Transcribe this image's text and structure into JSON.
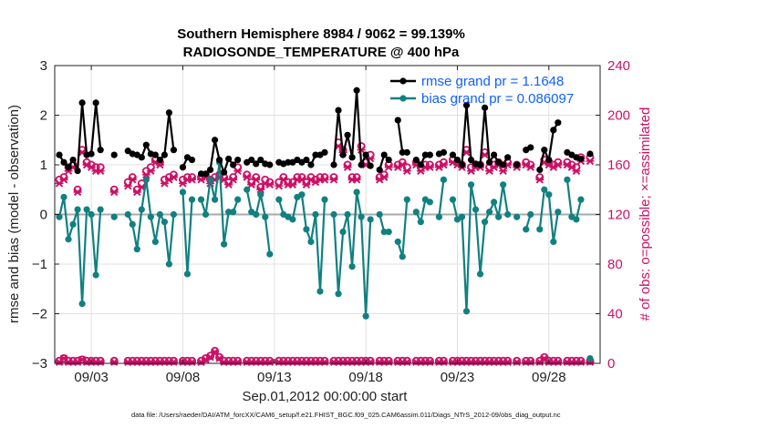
{
  "chart_data": {
    "type": "line",
    "title": "Southern Hemisphere 8984 / 9062 = 99.139%",
    "subtitle": "RADIOSONDE_TEMPERATURE @ 400 hPa",
    "xlabel": "Sep.01,2012 00:00:00 start",
    "ylabel": "rmse and bias (model - observation)",
    "ylabel_right": "# of obs: o=possible; ×=assimilated",
    "footer": "data file: /Users/raeder/DAI/ATM_forcXX/CAM6_setup/f.e21.FHIST_BGC.f09_025.CAM6assim.011/Diags_NTrS_2012-09/obs_diag_output.nc",
    "xlim": [
      1.0,
      30.8
    ],
    "ylim": [
      -3,
      3
    ],
    "ylim_right": [
      0,
      240
    ],
    "x_ticks": [
      3,
      8,
      13,
      18,
      23,
      28
    ],
    "x_tick_labels": [
      "09/03",
      "09/08",
      "09/13",
      "09/18",
      "09/23",
      "09/28"
    ],
    "y_ticks": [
      -3,
      -2,
      -1,
      0,
      1,
      2,
      3
    ],
    "y_tick_labels": [
      "−3",
      "−2",
      "−1",
      "0",
      "1",
      "2",
      "3"
    ],
    "y_right_ticks": [
      0,
      40,
      80,
      120,
      160,
      200,
      240
    ],
    "y_right_tick_labels": [
      "0",
      "40",
      "80",
      "120",
      "160",
      "200",
      "240"
    ],
    "grid": true,
    "legend_position": "top-right",
    "colors": {
      "rmse": "#000000",
      "bias": "#118080",
      "obs": "#cc1166",
      "zero_line": "#aaaaaa",
      "grid": "#e0e0e0"
    },
    "x": [
      1.25,
      1.5,
      1.75,
      2.0,
      2.25,
      2.5,
      2.75,
      3.0,
      3.25,
      3.5,
      3.75,
      4.0,
      4.25,
      4.5,
      4.75,
      5.0,
      5.25,
      5.5,
      5.75,
      6.0,
      6.25,
      6.5,
      6.75,
      7.0,
      7.25,
      7.5,
      7.75,
      8.0,
      8.25,
      8.5,
      8.75,
      9.0,
      9.25,
      9.5,
      9.75,
      10.0,
      10.25,
      10.5,
      10.75,
      11.0,
      11.25,
      11.5,
      11.75,
      12.0,
      12.25,
      12.5,
      12.75,
      13.0,
      13.25,
      13.5,
      13.75,
      14.0,
      14.25,
      14.5,
      14.75,
      15.0,
      15.25,
      15.5,
      15.75,
      16.0,
      16.25,
      16.5,
      16.75,
      17.0,
      17.25,
      17.5,
      17.75,
      18.0,
      18.25,
      18.5,
      18.75,
      19.0,
      19.25,
      19.5,
      19.75,
      20.0,
      20.25,
      20.5,
      20.75,
      21.0,
      21.25,
      21.5,
      21.75,
      22.0,
      22.25,
      22.5,
      22.75,
      23.0,
      23.25,
      23.5,
      23.75,
      24.0,
      24.25,
      24.5,
      24.75,
      25.0,
      25.25,
      25.5,
      25.75,
      26.0,
      26.25,
      26.5,
      26.75,
      27.0,
      27.25,
      27.5,
      27.75,
      28.0,
      28.25,
      28.5,
      28.75,
      29.0,
      29.25,
      29.5,
      29.75,
      30.0,
      30.25,
      30.5,
      30.75
    ],
    "series": [
      {
        "name": "rmse grand pr = 1.1648",
        "values": [
          1.2,
          1.05,
          0.95,
          1.1,
          0.88,
          2.25,
          1.2,
          1.22,
          2.25,
          1.3,
          null,
          null,
          1.2,
          null,
          null,
          1.28,
          1.22,
          1.2,
          1.15,
          1.4,
          1.22,
          1.2,
          1.1,
          1.2,
          2.05,
          1.3,
          null,
          0.95,
          1.15,
          1.1,
          null,
          0.82,
          0.82,
          0.9,
          1.5,
          1.1,
          0.85,
          1.12,
          1.0,
          1.1,
          null,
          1.05,
          1.1,
          1.02,
          1.1,
          1.02,
          1.0,
          null,
          1.05,
          1.02,
          1.05,
          1.05,
          1.1,
          1.05,
          1.1,
          1.0,
          1.2,
          1.2,
          1.25,
          null,
          1.0,
          2.1,
          1.2,
          1.6,
          1.15,
          2.5,
          1.0,
          1.2,
          0.98,
          null,
          0.9,
          1.2,
          1.1,
          null,
          1.9,
          1.25,
          1.25,
          null,
          1.1,
          1.0,
          1.2,
          1.2,
          null,
          1.22,
          1.25,
          null,
          1.2,
          1.1,
          1.0,
          2.2,
          1.1,
          1.02,
          1.0,
          2.15,
          1.05,
          1.2,
          1.05,
          1.0,
          1.15,
          null,
          1.0,
          null,
          1.3,
          1.35,
          null,
          0.9,
          1.3,
          1.1,
          1.7,
          1.85,
          null,
          1.25,
          1.2,
          1.15,
          1.12,
          null,
          1.22,
          null,
          null
        ]
      },
      {
        "name": "bias grand pr = 0.086097",
        "values": [
          -0.05,
          0.35,
          -0.5,
          -0.2,
          0.1,
          -1.8,
          0.1,
          0.0,
          -1.22,
          0.1,
          null,
          null,
          -0.05,
          null,
          null,
          0.0,
          -0.2,
          -0.7,
          0.1,
          0.7,
          -0.05,
          -0.55,
          0.0,
          -0.15,
          -1.0,
          0.0,
          null,
          0.45,
          -1.2,
          0.3,
          null,
          0.3,
          0.0,
          0.7,
          0.3,
          1.05,
          -0.6,
          0.05,
          0.05,
          0.3,
          null,
          0.5,
          0.05,
          0.0,
          0.4,
          -0.05,
          -0.8,
          null,
          0.3,
          0.0,
          -0.05,
          -0.1,
          0.35,
          0.4,
          -0.3,
          -0.55,
          0.0,
          -1.55,
          0.3,
          null,
          0.0,
          -1.6,
          -0.35,
          0.0,
          -1.05,
          0.45,
          -0.05,
          -2.05,
          -0.1,
          null,
          0.0,
          -0.35,
          -0.35,
          null,
          -0.55,
          -0.85,
          0.3,
          null,
          0.05,
          -0.15,
          0.3,
          0.25,
          null,
          -0.05,
          0.7,
          null,
          0.3,
          -0.1,
          -0.05,
          -1.95,
          0.6,
          0.1,
          -1.2,
          -0.15,
          0.05,
          0.25,
          -0.05,
          0.6,
          0.0,
          null,
          -0.05,
          null,
          -0.3,
          0.0,
          null,
          -0.3,
          0.5,
          0.4,
          -0.55,
          0.05,
          null,
          0.7,
          -0.05,
          -0.1,
          0.3,
          null,
          -2.9,
          null,
          null
        ]
      },
      {
        "name": "possible obs",
        "values": [
          2,
          4,
          2,
          2,
          2,
          3,
          2,
          2,
          2,
          2,
          null,
          null,
          2,
          null,
          null,
          2,
          2,
          2,
          2,
          2,
          2,
          2,
          2,
          2,
          2,
          2,
          null,
          2,
          2,
          2,
          null,
          2,
          4,
          6,
          10,
          5,
          2,
          2,
          2,
          2,
          null,
          2,
          2,
          2,
          2,
          2,
          2,
          null,
          2,
          2,
          2,
          2,
          2,
          2,
          2,
          2,
          2,
          2,
          2,
          null,
          2,
          2,
          2,
          2,
          2,
          2,
          2,
          2,
          2,
          null,
          2,
          2,
          2,
          null,
          2,
          2,
          2,
          null,
          2,
          2,
          2,
          2,
          null,
          2,
          2,
          null,
          2,
          2,
          2,
          2,
          2,
          2,
          2,
          2,
          2,
          2,
          2,
          2,
          2,
          null,
          2,
          null,
          2,
          2,
          null,
          2,
          5,
          2,
          2,
          2,
          null,
          2,
          2,
          2,
          2,
          null,
          2,
          null,
          null
        ]
      },
      {
        "name": "assimilated obs",
        "values": [
          1,
          4,
          1,
          1,
          1,
          3,
          1,
          1,
          1,
          1,
          null,
          null,
          1,
          null,
          null,
          1,
          1,
          1,
          1,
          1,
          1,
          1,
          1,
          1,
          1,
          1,
          null,
          1,
          1,
          1,
          null,
          1,
          3,
          5,
          9,
          4,
          1,
          1,
          1,
          1,
          null,
          1,
          1,
          1,
          1,
          1,
          1,
          null,
          1,
          1,
          1,
          1,
          1,
          1,
          1,
          1,
          1,
          1,
          1,
          null,
          1,
          1,
          1,
          1,
          1,
          1,
          1,
          1,
          1,
          null,
          1,
          1,
          1,
          null,
          1,
          1,
          1,
          null,
          1,
          1,
          1,
          1,
          null,
          1,
          1,
          null,
          1,
          1,
          1,
          1,
          1,
          1,
          1,
          1,
          1,
          1,
          1,
          1,
          1,
          null,
          1,
          null,
          1,
          1,
          null,
          1,
          4,
          1,
          1,
          1,
          null,
          1,
          1,
          1,
          1,
          null,
          1,
          null,
          null
        ]
      }
    ],
    "obs_upper_possible": [
      148,
      150,
      158,
      160,
      140,
      172,
      162,
      160,
      158,
      158,
      null,
      null,
      140,
      null,
      null,
      146,
      150,
      140,
      145,
      155,
      158,
      164,
      162,
      148,
      150,
      152,
      null,
      148,
      150,
      150,
      null,
      150,
      152,
      148,
      150,
      152,
      150,
      146,
      150,
      158,
      null,
      152,
      146,
      150,
      142,
      148,
      146,
      null,
      146,
      150,
      146,
      146,
      150,
      150,
      146,
      150,
      148,
      150,
      150,
      null,
      150,
      178,
      172,
      160,
      150,
      150,
      175,
      162,
      168,
      null,
      150,
      152,
      160,
      null,
      160,
      162,
      158,
      null,
      162,
      158,
      160,
      160,
      null,
      160,
      162,
      null,
      164,
      162,
      160,
      172,
      158,
      160,
      160,
      170,
      158,
      160,
      162,
      158,
      162,
      null,
      160,
      null,
      162,
      160,
      null,
      150,
      164,
      162,
      160,
      162,
      null,
      162,
      160,
      158,
      166,
      null,
      166,
      null,
      null
    ],
    "obs_upper_assimilated": [
      145,
      148,
      155,
      158,
      138,
      170,
      160,
      158,
      155,
      155,
      null,
      null,
      138,
      null,
      null,
      143,
      148,
      138,
      142,
      152,
      155,
      162,
      160,
      145,
      148,
      150,
      null,
      145,
      148,
      148,
      null,
      148,
      150,
      145,
      148,
      150,
      148,
      144,
      148,
      155,
      null,
      150,
      144,
      148,
      140,
      145,
      144,
      null,
      143,
      148,
      144,
      144,
      148,
      148,
      144,
      148,
      146,
      148,
      148,
      null,
      148,
      175,
      170,
      158,
      148,
      148,
      172,
      160,
      165,
      null,
      148,
      150,
      158,
      null,
      158,
      160,
      155,
      null,
      160,
      155,
      158,
      158,
      null,
      158,
      160,
      null,
      162,
      160,
      158,
      170,
      155,
      158,
      158,
      168,
      155,
      158,
      160,
      155,
      160,
      null,
      158,
      null,
      160,
      158,
      null,
      148,
      162,
      160,
      158,
      160,
      null,
      160,
      158,
      155,
      163,
      null,
      163,
      null,
      null
    ],
    "legend": [
      "rmse grand pr = 1.1648",
      "bias grand pr = 0.086097"
    ]
  }
}
